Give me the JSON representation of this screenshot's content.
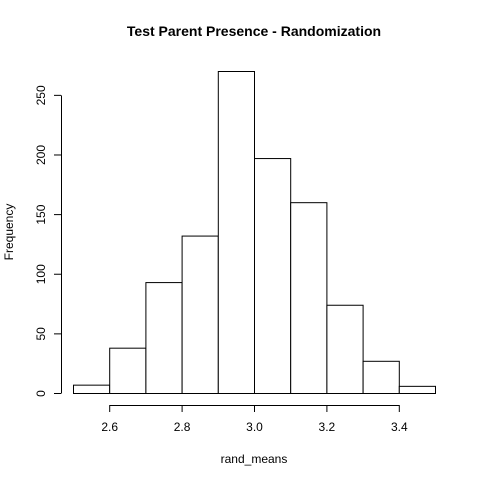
{
  "chart_data": {
    "type": "bar",
    "title": "Test Parent Presence - Randomization",
    "xlabel": "rand_means",
    "ylabel": "Frequency",
    "bin_edges": [
      2.5,
      2.6,
      2.7,
      2.8,
      2.9,
      3.0,
      3.1,
      3.2,
      3.3,
      3.4,
      3.5
    ],
    "values": [
      7,
      38,
      93,
      132,
      270,
      197,
      160,
      74,
      27,
      6
    ],
    "x_ticks": [
      2.6,
      2.8,
      3.0,
      3.2,
      3.4
    ],
    "x_tick_labels": [
      "2.6",
      "2.8",
      "3.0",
      "3.2",
      "3.4"
    ],
    "y_ticks": [
      0,
      50,
      100,
      150,
      200,
      250
    ],
    "y_tick_labels": [
      "0",
      "50",
      "100",
      "150",
      "200",
      "250"
    ],
    "xlim": [
      2.5,
      3.5
    ],
    "ylim": [
      0,
      270
    ],
    "grid": false
  }
}
